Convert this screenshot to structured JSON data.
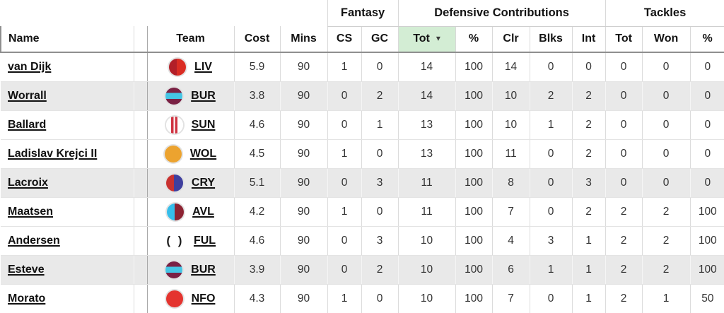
{
  "table": {
    "groups": [
      {
        "label": "Fantasy",
        "span": 2
      },
      {
        "label": "Defensive Contributions",
        "span": 5
      },
      {
        "label": "Tackles",
        "span": 3
      }
    ],
    "columns": [
      {
        "key": "name",
        "label": "Name"
      },
      {
        "key": "team",
        "label": "Team"
      },
      {
        "key": "cost",
        "label": "Cost"
      },
      {
        "key": "mins",
        "label": "Mins"
      },
      {
        "key": "cs",
        "label": "CS"
      },
      {
        "key": "gc",
        "label": "GC"
      },
      {
        "key": "dc_tot",
        "label": "Tot",
        "sorted": "desc"
      },
      {
        "key": "dc_pct",
        "label": "%"
      },
      {
        "key": "clr",
        "label": "Clr"
      },
      {
        "key": "blks",
        "label": "Blks"
      },
      {
        "key": "int",
        "label": "Int"
      },
      {
        "key": "tk_tot",
        "label": "Tot"
      },
      {
        "key": "won",
        "label": "Won"
      },
      {
        "key": "tk_pct",
        "label": "%"
      }
    ],
    "sort_indicator": "▾",
    "sort_highlight_color": "#d3edd4",
    "shaded_row_color": "#e9e9e9",
    "rows": [
      {
        "name": "van Dijk",
        "team": "LIV",
        "cost": "5.9",
        "mins": 90,
        "cs": 1,
        "gc": 0,
        "dc_tot": 14,
        "dc_pct": 100,
        "clr": 14,
        "blks": 0,
        "int": 0,
        "tk_tot": 0,
        "won": 0,
        "tk_pct": 0
      },
      {
        "name": "Worrall",
        "team": "BUR",
        "cost": "3.8",
        "mins": 90,
        "cs": 0,
        "gc": 2,
        "dc_tot": 14,
        "dc_pct": 100,
        "clr": 10,
        "blks": 2,
        "int": 2,
        "tk_tot": 0,
        "won": 0,
        "tk_pct": 0
      },
      {
        "name": "Ballard",
        "team": "SUN",
        "cost": "4.6",
        "mins": 90,
        "cs": 0,
        "gc": 1,
        "dc_tot": 13,
        "dc_pct": 100,
        "clr": 10,
        "blks": 1,
        "int": 2,
        "tk_tot": 0,
        "won": 0,
        "tk_pct": 0
      },
      {
        "name": "Ladislav Krejci II",
        "team": "WOL",
        "cost": "4.5",
        "mins": 90,
        "cs": 1,
        "gc": 0,
        "dc_tot": 13,
        "dc_pct": 100,
        "clr": 11,
        "blks": 0,
        "int": 2,
        "tk_tot": 0,
        "won": 0,
        "tk_pct": 0
      },
      {
        "name": "Lacroix",
        "team": "CRY",
        "cost": "5.1",
        "mins": 90,
        "cs": 0,
        "gc": 3,
        "dc_tot": 11,
        "dc_pct": 100,
        "clr": 8,
        "blks": 0,
        "int": 3,
        "tk_tot": 0,
        "won": 0,
        "tk_pct": 0
      },
      {
        "name": "Maatsen",
        "team": "AVL",
        "cost": "4.2",
        "mins": 90,
        "cs": 1,
        "gc": 0,
        "dc_tot": 11,
        "dc_pct": 100,
        "clr": 7,
        "blks": 0,
        "int": 2,
        "tk_tot": 2,
        "won": 2,
        "tk_pct": 100
      },
      {
        "name": "Andersen",
        "team": "FUL",
        "cost": "4.6",
        "mins": 90,
        "cs": 0,
        "gc": 3,
        "dc_tot": 10,
        "dc_pct": 100,
        "clr": 4,
        "blks": 3,
        "int": 1,
        "tk_tot": 2,
        "won": 2,
        "tk_pct": 100
      },
      {
        "name": "Esteve",
        "team": "BUR",
        "cost": "3.9",
        "mins": 90,
        "cs": 0,
        "gc": 2,
        "dc_tot": 10,
        "dc_pct": 100,
        "clr": 6,
        "blks": 1,
        "int": 1,
        "tk_tot": 2,
        "won": 2,
        "tk_pct": 100
      },
      {
        "name": "Morato",
        "team": "NFO",
        "cost": "4.3",
        "mins": 90,
        "cs": 1,
        "gc": 0,
        "dc_tot": 10,
        "dc_pct": 100,
        "clr": 7,
        "blks": 0,
        "int": 1,
        "tk_tot": 2,
        "won": 1,
        "tk_pct": 50
      }
    ],
    "badges": {
      "LIV": {
        "style": "split",
        "colors": [
          "#b21f28",
          "#da2c23"
        ]
      },
      "BUR": {
        "style": "band",
        "colors": [
          "#7a2144",
          "#45c5e5"
        ]
      },
      "SUN": {
        "style": "stripes",
        "colors": [
          "#ffffff",
          "#cf3341"
        ]
      },
      "WOL": {
        "style": "solid",
        "colors": [
          "#eca32f"
        ]
      },
      "CRY": {
        "style": "split",
        "colors": [
          "#c93230",
          "#3f3f9e"
        ]
      },
      "AVL": {
        "style": "split",
        "colors": [
          "#35bdea",
          "#8c2332"
        ]
      },
      "FUL": {
        "style": "parens",
        "colors": [
          "#ffffff",
          "#1b1b1b"
        ]
      },
      "NFO": {
        "style": "solid",
        "colors": [
          "#e4342f"
        ]
      }
    }
  }
}
